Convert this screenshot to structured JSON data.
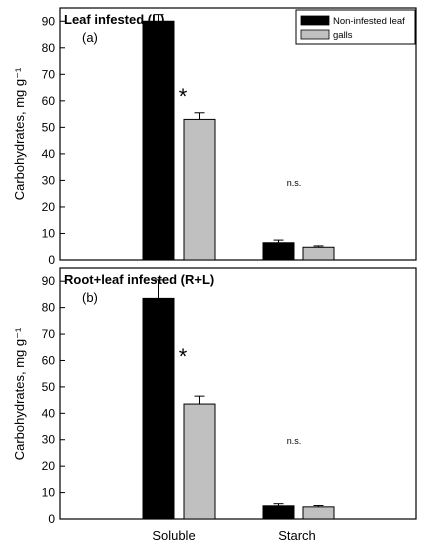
{
  "legend": [
    {
      "label": "Non-infested leaf",
      "color": "#000000"
    },
    {
      "label": "galls",
      "color": "#c0c0c0"
    }
  ],
  "x_categories": [
    "Soluble",
    "Starch"
  ],
  "chart_data": [
    {
      "type": "bar",
      "title": "Leaf infested (L)",
      "panel_label": "(a)",
      "xlabel": "",
      "ylabel": "Carbohydrates, mg g⁻¹",
      "ylim": [
        0,
        95
      ],
      "yticks": [
        "0",
        "10",
        "20",
        "30",
        "40",
        "50",
        "60",
        "70",
        "80",
        "90"
      ],
      "categories": [
        "Soluble",
        "Starch"
      ],
      "series": [
        {
          "name": "Non-infested leaf",
          "color": "#000000",
          "values": [
            90,
            6.5
          ],
          "errors": [
            2.5,
            1.0
          ]
        },
        {
          "name": "galls",
          "color": "#c0c0c0",
          "values": [
            53,
            4.8
          ],
          "errors": [
            2.5,
            0.5
          ]
        }
      ],
      "annotations": [
        "*",
        "n.s."
      ],
      "legend_position": "top-right",
      "grid": false
    },
    {
      "type": "bar",
      "title": "Root+leaf infested (R+L)",
      "panel_label": "(b)",
      "xlabel": "",
      "ylabel": "Carbohydrates, mg g⁻¹",
      "ylim": [
        0,
        95
      ],
      "yticks": [
        "0",
        "10",
        "20",
        "30",
        "40",
        "50",
        "60",
        "70",
        "80",
        "90"
      ],
      "categories": [
        "Soluble",
        "Starch"
      ],
      "series": [
        {
          "name": "Non-infested leaf",
          "color": "#000000",
          "values": [
            83.5,
            5.0
          ],
          "errors": [
            7.0,
            0.8
          ]
        },
        {
          "name": "galls",
          "color": "#c0c0c0",
          "values": [
            43.5,
            4.6
          ],
          "errors": [
            3.0,
            0.5
          ]
        }
      ],
      "annotations": [
        "*",
        "n.s."
      ],
      "grid": false
    }
  ]
}
